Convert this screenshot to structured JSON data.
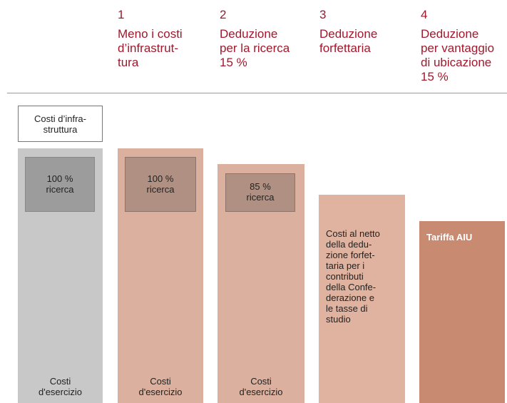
{
  "steps": [
    {
      "number": "1",
      "label": "Meno i costi\nd’infrastrut-\ntura"
    },
    {
      "number": "2",
      "label": "Deduzione\nper la ricerca\n15 %"
    },
    {
      "number": "3",
      "label": "Deduzione\nforfettaria"
    },
    {
      "number": "4",
      "label": "Deduzione\nper vantaggio\ndi ubicazione\n15 %"
    }
  ],
  "columns": [
    {
      "header": "Costi d’infra-\nstruttura",
      "research": "100 %\nricerca",
      "footer": "Costi\nd'esercizio"
    },
    {
      "research": "100 %\nricerca",
      "footer": "Costi\nd'esercizio"
    },
    {
      "research": "85 %\nricerca",
      "footer": "Costi\nd'esercizio"
    },
    {
      "note": "Costi al netto\ndella dedu-\nzione forfet-\ntaria per i\ncontributi\ndella Confe-\nderazione e\nle tasse di\nstudio"
    },
    {
      "note": "Tariffa AIU"
    }
  ]
}
